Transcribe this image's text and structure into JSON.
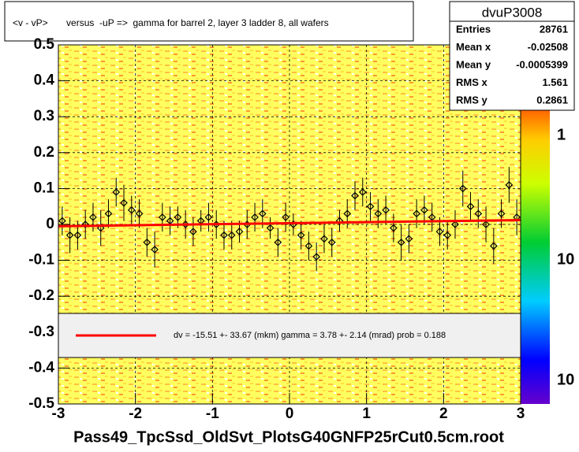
{
  "chart_data": {
    "type": "profile",
    "title": "<v - vP>       versus  -uP =>  gamma for barrel 2, layer 3 ladder 8, all wafers",
    "x_label": "Pass49_TpcSsd_OldSvt_PlotsG40GNFP25rCut0.5cm.root",
    "xlim": [
      -3,
      3
    ],
    "ylim": [
      -0.5,
      0.5
    ],
    "xticks": [
      -3,
      -2,
      -1,
      0,
      1,
      2,
      3
    ],
    "yticks": [
      -0.5,
      -0.4,
      -0.3,
      -0.2,
      -0.1,
      0,
      0.1,
      0.2,
      0.3,
      0.4,
      0.5
    ],
    "grid": true,
    "series": [
      {
        "color": "#000000",
        "x": [
          -2.95,
          -2.85,
          -2.75,
          -2.65,
          -2.55,
          -2.45,
          -2.35,
          -2.25,
          -2.15,
          -2.05,
          -1.95,
          -1.85,
          -1.75,
          -1.65,
          -1.55,
          -1.45,
          -1.35,
          -1.25,
          -1.15,
          -1.05,
          -0.95,
          -0.85,
          -0.75,
          -0.65,
          -0.55,
          -0.45,
          -0.35,
          -0.25,
          -0.15,
          -0.05,
          0.05,
          0.15,
          0.25,
          0.35,
          0.45,
          0.55,
          0.65,
          0.75,
          0.85,
          0.95,
          1.05,
          1.15,
          1.25,
          1.35,
          1.45,
          1.55,
          1.65,
          1.75,
          1.85,
          1.95,
          2.05,
          2.15,
          2.25,
          2.35,
          2.45,
          2.55,
          2.65,
          2.75,
          2.85,
          2.95
        ],
        "values": [
          0.01,
          -0.03,
          -0.03,
          0.0,
          0.02,
          -0.01,
          0.03,
          0.09,
          0.06,
          0.04,
          0.03,
          -0.05,
          -0.07,
          0.02,
          0.01,
          0.02,
          0.0,
          -0.02,
          0.01,
          0.02,
          0.0,
          -0.03,
          -0.03,
          -0.02,
          0.0,
          0.02,
          0.03,
          -0.01,
          -0.05,
          0.02,
          0.0,
          -0.03,
          -0.06,
          -0.09,
          -0.04,
          -0.05,
          0.01,
          0.03,
          0.08,
          0.09,
          0.05,
          0.03,
          0.04,
          -0.01,
          -0.05,
          -0.04,
          0.03,
          0.04,
          0.02,
          -0.02,
          -0.03,
          0.0,
          0.1,
          0.05,
          0.03,
          0.0,
          -0.06,
          0.03,
          0.11,
          0.02
        ],
        "errors": [
          0.04,
          0.05,
          0.04,
          0.04,
          0.04,
          0.05,
          0.04,
          0.04,
          0.05,
          0.04,
          0.04,
          0.04,
          0.05,
          0.04,
          0.04,
          0.03,
          0.04,
          0.04,
          0.03,
          0.04,
          0.04,
          0.04,
          0.04,
          0.03,
          0.04,
          0.04,
          0.04,
          0.03,
          0.04,
          0.04,
          0.03,
          0.04,
          0.04,
          0.04,
          0.04,
          0.04,
          0.03,
          0.04,
          0.04,
          0.04,
          0.04,
          0.04,
          0.04,
          0.04,
          0.05,
          0.04,
          0.04,
          0.04,
          0.04,
          0.04,
          0.04,
          0.04,
          0.05,
          0.04,
          0.04,
          0.05,
          0.05,
          0.04,
          0.05,
          0.05
        ]
      }
    ],
    "fit": {
      "color": "#ff0000",
      "x": [
        -3,
        3
      ],
      "values": [
        -0.005,
        0.012
      ]
    },
    "legend_text": "dv =  -15.51 +-  33.67 (mkm) gamma =    3.78 +-  2.14 (mrad) prob = 0.188",
    "stats": {
      "title": "dvuP3008",
      "rows": [
        [
          "Entries",
          "28761"
        ],
        [
          "Mean x",
          "-0.02508"
        ],
        [
          "Mean y",
          "-0.0005399"
        ],
        [
          "RMS x",
          "1.561"
        ],
        [
          "RMS y",
          "0.2861"
        ]
      ]
    },
    "colorbar_labels": [
      "1",
      "10",
      "10"
    ]
  }
}
